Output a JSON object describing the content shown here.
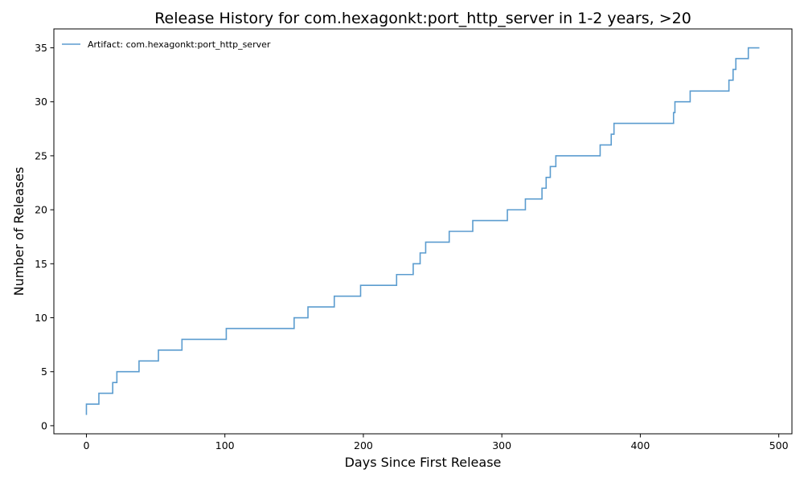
{
  "chart_data": {
    "type": "line",
    "title": "Release History for com.hexagonkt:port_http_server in 1-2 years, >20",
    "xlabel": "Days Since First Release",
    "ylabel": "Number of Releases",
    "xlim": [
      -23.5,
      509.5
    ],
    "ylim": [
      -0.75,
      36.75
    ],
    "xticks": [
      0,
      100,
      200,
      300,
      400,
      500
    ],
    "yticks": [
      0,
      5,
      10,
      15,
      20,
      25,
      30,
      35
    ],
    "grid": false,
    "legend_position": "top-left",
    "series": [
      {
        "name": "Artifact: com.hexagonkt:port_http_server",
        "color": "#5b9ccf",
        "step": "post",
        "x": [
          0,
          0,
          9,
          19,
          22,
          38,
          52,
          69,
          101,
          150,
          160,
          179,
          198,
          224,
          236,
          241,
          245,
          262,
          279,
          304,
          317,
          329,
          332,
          335,
          339,
          371,
          379,
          381,
          424,
          425,
          436,
          464,
          467,
          469,
          478,
          486
        ],
        "y": [
          1,
          2,
          3,
          4,
          5,
          6,
          7,
          8,
          9,
          10,
          11,
          12,
          13,
          14,
          15,
          16,
          17,
          18,
          19,
          20,
          21,
          22,
          23,
          24,
          25,
          26,
          27,
          28,
          29,
          30,
          31,
          32,
          33,
          34,
          35,
          35
        ]
      }
    ]
  }
}
